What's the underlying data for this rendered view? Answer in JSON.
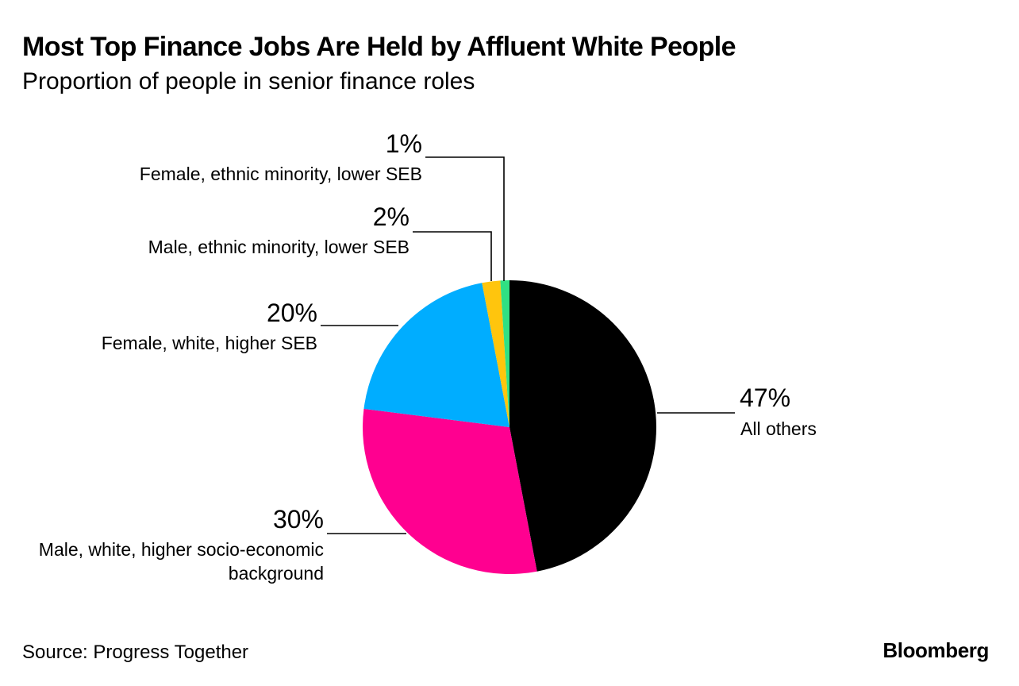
{
  "title": "Most Top Finance Jobs Are Held by Affluent White People",
  "subtitle": "Proportion of people in senior finance roles",
  "source": "Source: Progress Together",
  "brand": "Bloomberg",
  "chart_data": {
    "type": "pie",
    "title": "Most Top Finance Jobs Are Held by Affluent White People",
    "subtitle": "Proportion of people in senior finance roles",
    "slices": [
      {
        "label": "All others",
        "value": 47,
        "display": "47%",
        "color": "#000000"
      },
      {
        "label": "Male, white, higher socio-economic background",
        "value": 30,
        "display": "30%",
        "color": "#ff0090"
      },
      {
        "label": "Female, white, higher SEB",
        "value": 20,
        "display": "20%",
        "color": "#00adff"
      },
      {
        "label": "Male, ethnic minority, lower SEB",
        "value": 2,
        "display": "2%",
        "color": "#ffc50d"
      },
      {
        "label": "Female, ethnic minority, lower SEB",
        "value": 1,
        "display": "1%",
        "color": "#30e083"
      }
    ]
  }
}
